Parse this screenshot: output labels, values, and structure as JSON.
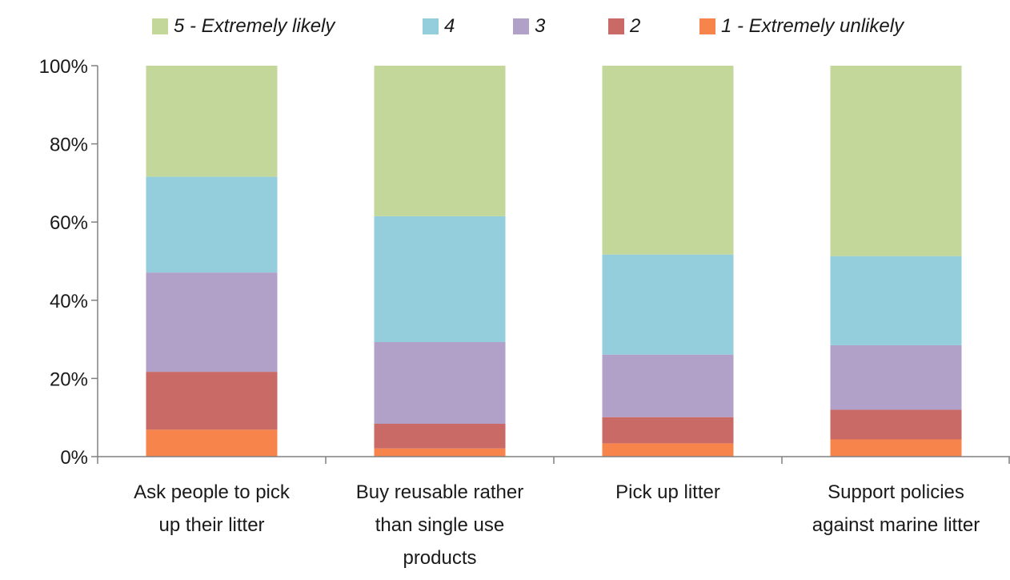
{
  "chart_data": {
    "type": "bar",
    "stacked": true,
    "percent_stacked": true,
    "categories": [
      [
        "Ask people to pick",
        "up their litter"
      ],
      [
        "Buy reusable rather",
        "than single use",
        "products"
      ],
      [
        "Pick up litter"
      ],
      [
        "Support policies",
        "against marine litter"
      ]
    ],
    "series": [
      {
        "name": "1 - Extremely unlikely",
        "color": "#f7844a",
        "values": [
          6.9,
          2.1,
          3.4,
          4.4
        ]
      },
      {
        "name": "2",
        "color": "#c96a66",
        "values": [
          14.8,
          6.3,
          6.7,
          7.6
        ]
      },
      {
        "name": "3",
        "color": "#b1a0c7",
        "values": [
          25.4,
          20.9,
          16.0,
          16.5
        ]
      },
      {
        "name": "4",
        "color": "#94cddc",
        "values": [
          24.5,
          32.2,
          25.6,
          22.8
        ]
      },
      {
        "name": "5 - Extremely likely",
        "color": "#c4d79b",
        "values": [
          28.4,
          38.5,
          48.3,
          48.7
        ]
      }
    ],
    "legend_order": [
      "5 - Extremely likely",
      "4",
      "3",
      "2",
      "1 - Extremely unlikely"
    ],
    "yticks": [
      "0%",
      "20%",
      "40%",
      "60%",
      "80%",
      "100%"
    ],
    "ylim": [
      0,
      100
    ],
    "legend_position": "top",
    "grid": false
  }
}
